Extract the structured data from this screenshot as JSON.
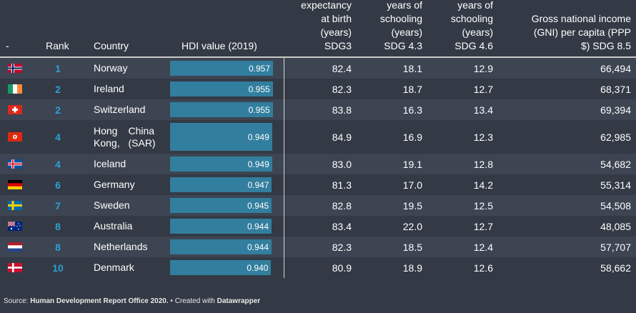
{
  "columns": {
    "flag": "-",
    "rank": "Rank",
    "country": "Country",
    "hdi": "HDI value (2019)",
    "life": [
      "expectancy",
      "at birth",
      "(years)",
      "SDG3"
    ],
    "expected": [
      "years of",
      "schooling",
      "(years)",
      "SDG 4.3"
    ],
    "mean": [
      "years of",
      "schooling",
      "(years)",
      "SDG 4.6"
    ],
    "gni": [
      "Gross national income",
      "(GNI) per capita (PPP",
      "$) SDG 8.5"
    ]
  },
  "chart_data": {
    "type": "table",
    "title": "",
    "rows": [
      {
        "flag": "norway-flag",
        "rank": "1",
        "country": [
          "Norway"
        ],
        "hdi": "0.957",
        "life": "82.4",
        "expected": "18.1",
        "mean": "12.9",
        "gni": "66,494"
      },
      {
        "flag": "ireland-flag",
        "rank": "2",
        "country": [
          "Ireland"
        ],
        "hdi": "0.955",
        "life": "82.3",
        "expected": "18.7",
        "mean": "12.7",
        "gni": "68,371"
      },
      {
        "flag": "switzerland-flag",
        "rank": "2",
        "country": [
          "Switzerland"
        ],
        "hdi": "0.955",
        "life": "83.8",
        "expected": "16.3",
        "mean": "13.4",
        "gni": "69,394"
      },
      {
        "flag": "hong-kong-flag",
        "rank": "4",
        "country": [
          "Hong Kong,",
          "China (SAR)"
        ],
        "hdi": "0.949",
        "life": "84.9",
        "expected": "16.9",
        "mean": "12.3",
        "gni": "62,985"
      },
      {
        "flag": "iceland-flag",
        "rank": "4",
        "country": [
          "Iceland"
        ],
        "hdi": "0.949",
        "life": "83.0",
        "expected": "19.1",
        "mean": "12.8",
        "gni": "54,682"
      },
      {
        "flag": "germany-flag",
        "rank": "6",
        "country": [
          "Germany"
        ],
        "hdi": "0.947",
        "life": "81.3",
        "expected": "17.0",
        "mean": "14.2",
        "gni": "55,314"
      },
      {
        "flag": "sweden-flag",
        "rank": "7",
        "country": [
          "Sweden"
        ],
        "hdi": "0.945",
        "life": "82.8",
        "expected": "19.5",
        "mean": "12.5",
        "gni": "54,508"
      },
      {
        "flag": "australia-flag",
        "rank": "8",
        "country": [
          "Australia"
        ],
        "hdi": "0.944",
        "life": "83.4",
        "expected": "22.0",
        "mean": "12.7",
        "gni": "48,085"
      },
      {
        "flag": "netherlands-flag",
        "rank": "8",
        "country": [
          "Netherlands"
        ],
        "hdi": "0.944",
        "life": "82.3",
        "expected": "18.5",
        "mean": "12.4",
        "gni": "57,707"
      },
      {
        "flag": "denmark-flag",
        "rank": "10",
        "country": [
          "Denmark"
        ],
        "hdi": "0.940",
        "life": "80.9",
        "expected": "18.9",
        "mean": "12.6",
        "gni": "58,662"
      }
    ],
    "hdi_bar_range": [
      0,
      0.957
    ]
  },
  "footer": {
    "source_label": "Source: ",
    "source": "Human Development Report Office 2020.",
    "created_label": " • Created with ",
    "tool": "Datawrapper"
  },
  "colors": {
    "background": "#333a45",
    "row_alt": "#3d4452",
    "bar": "#327e9e",
    "rank": "#2e9fd6"
  }
}
